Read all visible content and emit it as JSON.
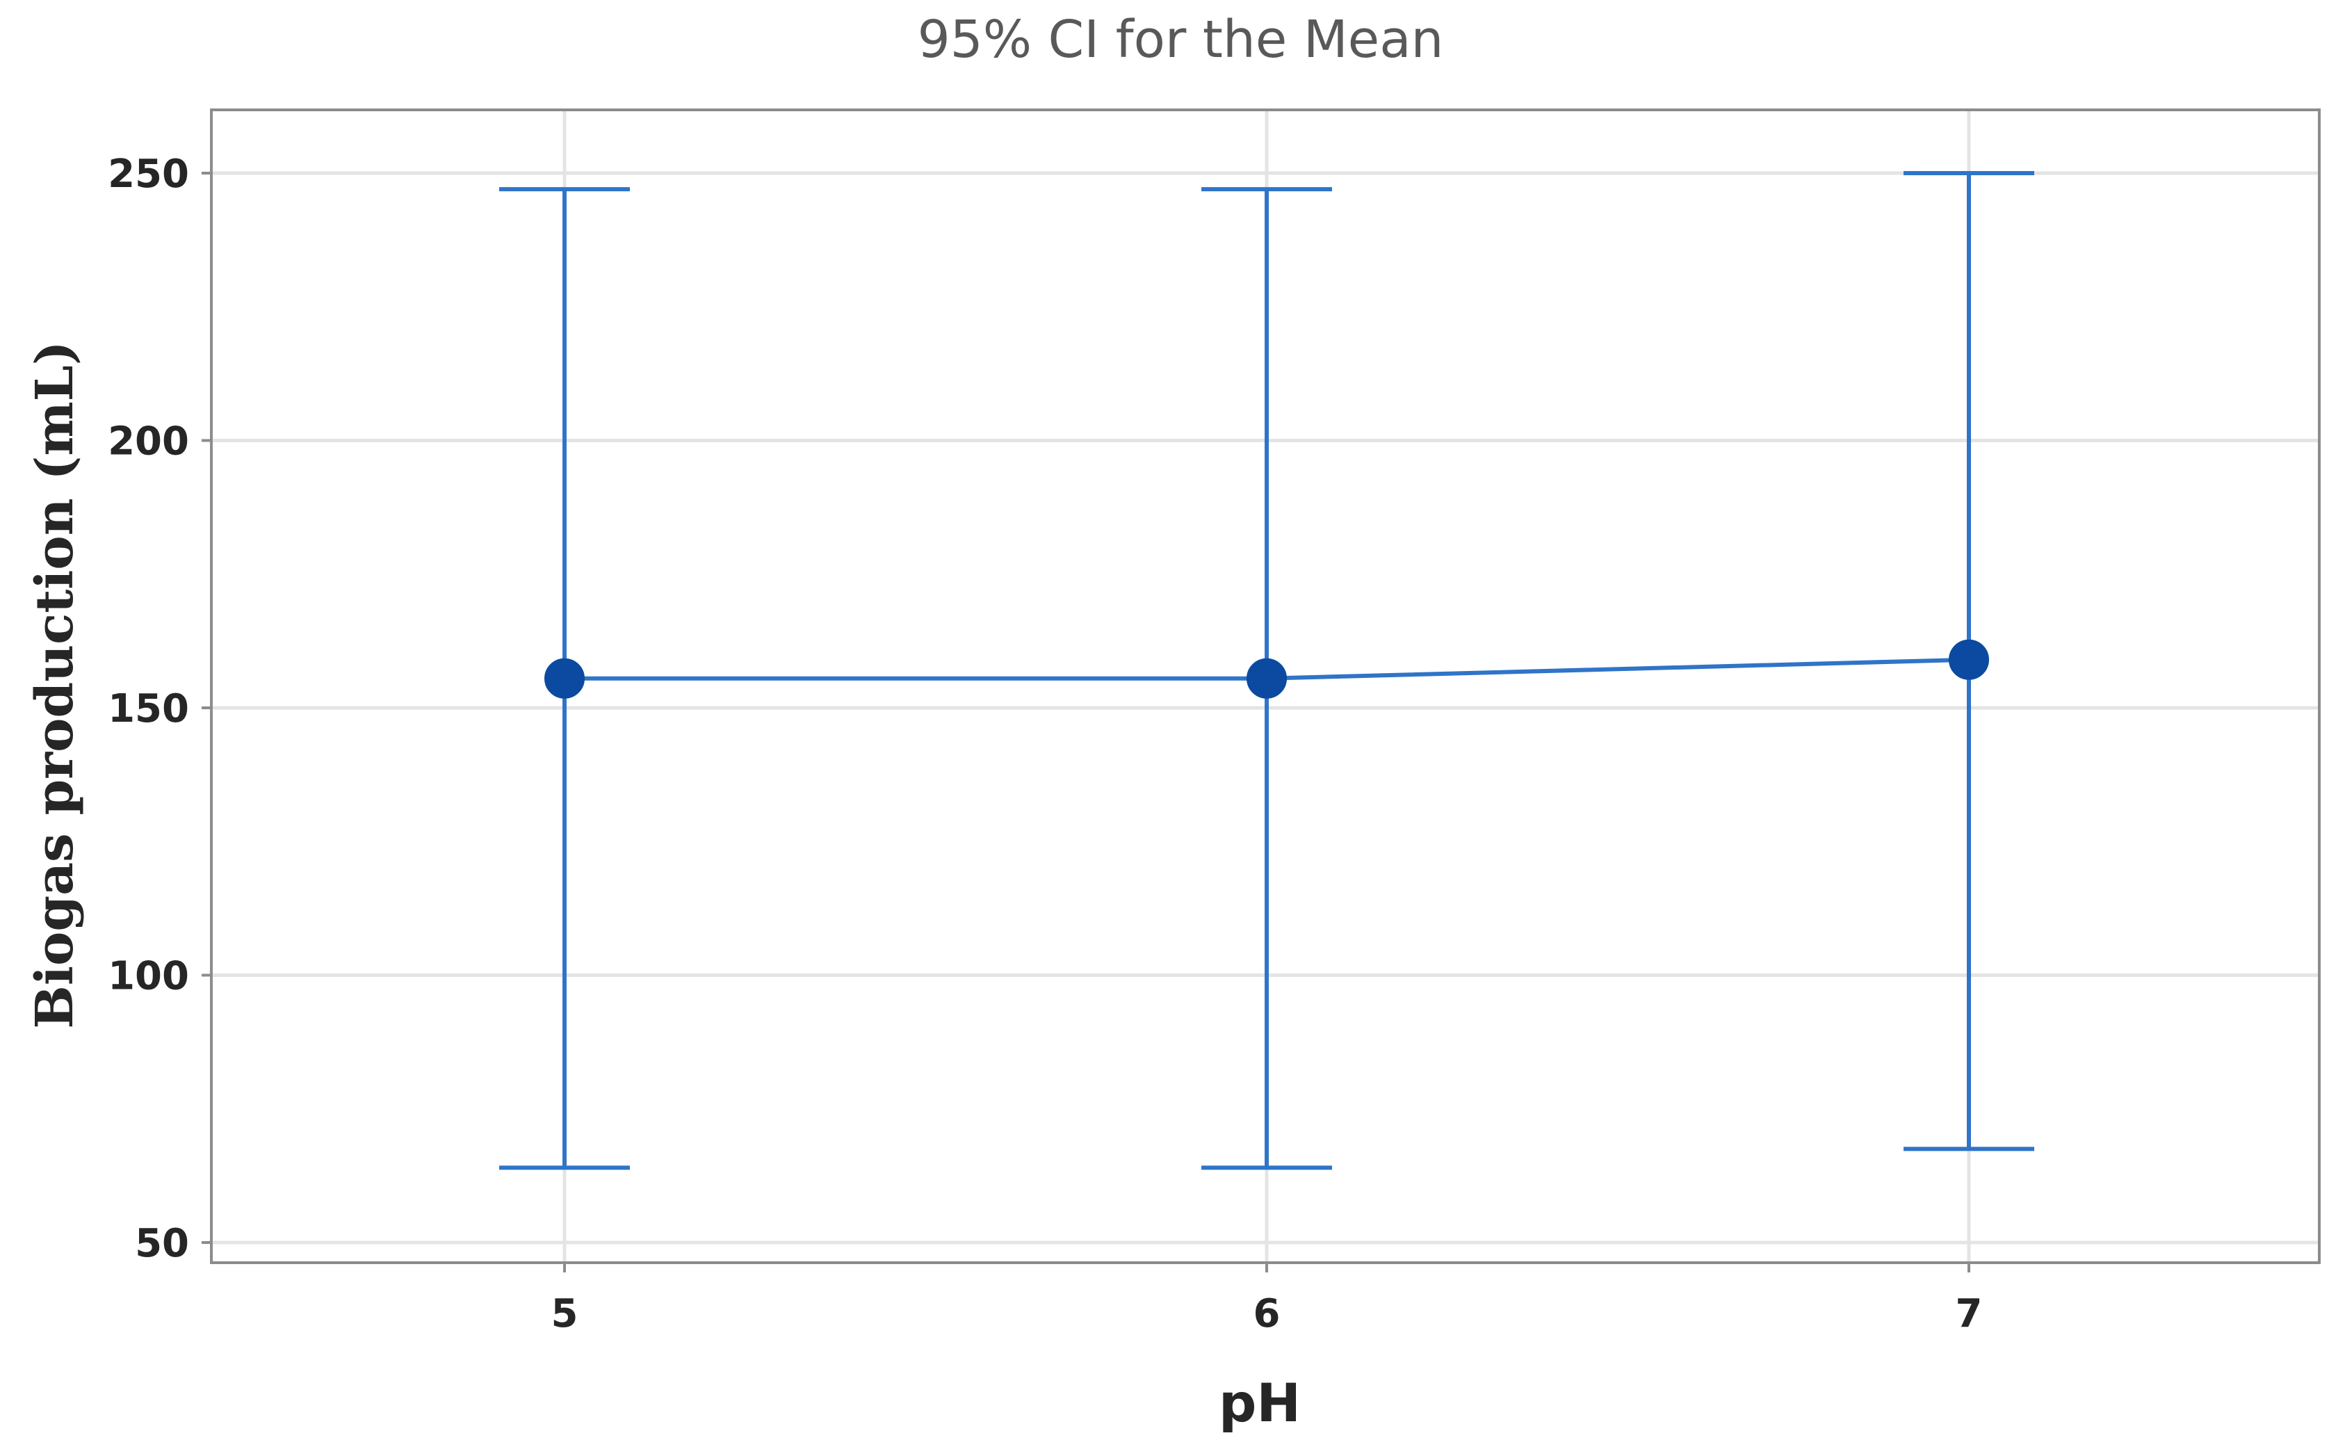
{
  "chart_data": {
    "type": "line",
    "title": "95% CI for the Mean",
    "xlabel": "pH",
    "ylabel": "Biogas production (mL)",
    "categories": [
      "5",
      "6",
      "7"
    ],
    "mean": [
      155.5,
      155.5,
      159
    ],
    "ci_upper": [
      247,
      247,
      250
    ],
    "ci_lower": [
      64,
      64,
      67.5
    ],
    "ylim": [
      46,
      262
    ],
    "yticks": [
      50,
      100,
      150,
      200,
      250
    ],
    "grid": true,
    "legend": "none",
    "colors": {
      "series": "#2f74c8",
      "marker": "#0b4aa0"
    }
  }
}
